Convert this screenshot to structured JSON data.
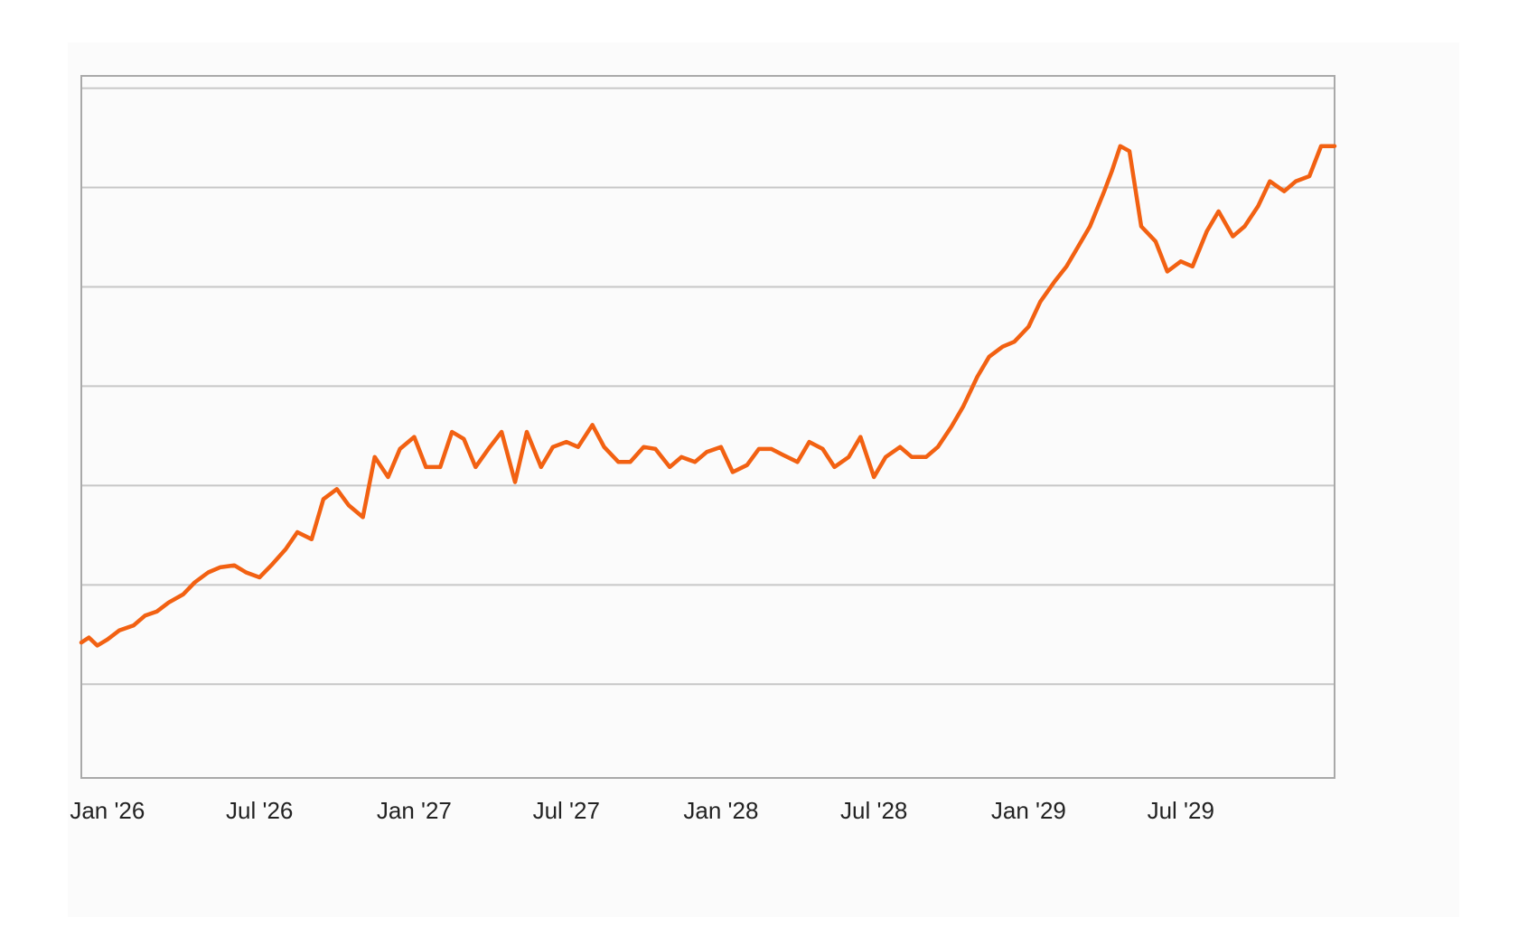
{
  "chart_data": {
    "type": "line",
    "title": "",
    "xlabel": "",
    "ylabel": "",
    "grid": true,
    "legend": "none",
    "line_color": "#f26112",
    "grid_color": "#c7c7c7",
    "x_tick_labels": [
      "Jan '26",
      "Jul '26",
      "Jan '27",
      "Jul '27",
      "Jan '28",
      "Jul '28",
      "Jan '29",
      "Jul '29"
    ],
    "y_gridlines": 7,
    "ylim": [
      0,
      7
    ],
    "series": [
      {
        "x": [
          "2025-12-01",
          "2025-12-10",
          "2025-12-20",
          "2026-01-01",
          "2026-01-15",
          "2026-02-01",
          "2026-02-15",
          "2026-03-01",
          "2026-03-15",
          "2026-04-01",
          "2026-04-15",
          "2026-05-01",
          "2026-05-15",
          "2026-06-01",
          "2026-06-15",
          "2026-07-01",
          "2026-07-15",
          "2026-08-01",
          "2026-08-15",
          "2026-09-01",
          "2026-09-15",
          "2026-10-01",
          "2026-10-15",
          "2026-11-01",
          "2026-11-15",
          "2026-12-01",
          "2026-12-15",
          "2027-01-01",
          "2027-01-15",
          "2027-02-01",
          "2027-02-15",
          "2027-03-01",
          "2027-03-15",
          "2027-04-01",
          "2027-04-15",
          "2027-05-01",
          "2027-05-15",
          "2027-06-01",
          "2027-06-15",
          "2027-07-01",
          "2027-07-15",
          "2027-08-01",
          "2027-08-15",
          "2027-09-01",
          "2027-09-15",
          "2027-10-01",
          "2027-10-15",
          "2027-11-01",
          "2027-11-15",
          "2027-12-01",
          "2027-12-15",
          "2028-01-01",
          "2028-01-15",
          "2028-02-01",
          "2028-02-15",
          "2028-03-01",
          "2028-03-15",
          "2028-04-01",
          "2028-04-15",
          "2028-05-01",
          "2028-05-15",
          "2028-06-01",
          "2028-06-15",
          "2028-07-01",
          "2028-07-15",
          "2028-08-01",
          "2028-08-15",
          "2028-09-01",
          "2028-09-15",
          "2028-10-01",
          "2028-10-15",
          "2028-11-01",
          "2028-11-15",
          "2028-12-01",
          "2028-12-15",
          "2029-01-01",
          "2029-01-15",
          "2029-02-01",
          "2029-02-15",
          "2029-03-01",
          "2029-03-15",
          "2029-04-01",
          "2029-04-10",
          "2029-04-20",
          "2029-05-01",
          "2029-05-15",
          "2029-06-01",
          "2029-06-15",
          "2029-07-01",
          "2029-07-15",
          "2029-08-01",
          "2029-08-15",
          "2029-09-01",
          "2029-09-15",
          "2029-10-01",
          "2029-10-15",
          "2029-11-01",
          "2029-11-15",
          "2029-12-01",
          "2029-12-15",
          "2029-12-31"
        ],
        "y": [
          1.35,
          1.4,
          1.32,
          1.38,
          1.47,
          1.52,
          1.62,
          1.66,
          1.75,
          1.83,
          1.95,
          2.05,
          2.1,
          2.12,
          2.05,
          2.0,
          2.12,
          2.28,
          2.45,
          2.38,
          2.78,
          2.88,
          2.72,
          2.6,
          3.2,
          3.0,
          3.28,
          3.4,
          3.1,
          3.1,
          3.45,
          3.38,
          3.1,
          3.3,
          3.45,
          2.95,
          3.45,
          3.1,
          3.3,
          3.35,
          3.3,
          3.52,
          3.3,
          3.15,
          3.15,
          3.3,
          3.28,
          3.1,
          3.2,
          3.15,
          3.25,
          3.3,
          3.05,
          3.12,
          3.28,
          3.28,
          3.22,
          3.15,
          3.35,
          3.28,
          3.1,
          3.2,
          3.4,
          3.0,
          3.2,
          3.3,
          3.2,
          3.2,
          3.3,
          3.5,
          3.7,
          4.0,
          4.2,
          4.3,
          4.35,
          4.5,
          4.75,
          4.95,
          5.1,
          5.3,
          5.5,
          5.85,
          6.05,
          6.3,
          6.25,
          5.5,
          5.35,
          5.05,
          5.15,
          5.1,
          5.45,
          5.65,
          5.4,
          5.5,
          5.7,
          5.95,
          5.85,
          5.95,
          6.0,
          6.3,
          6.3
        ]
      }
    ]
  }
}
